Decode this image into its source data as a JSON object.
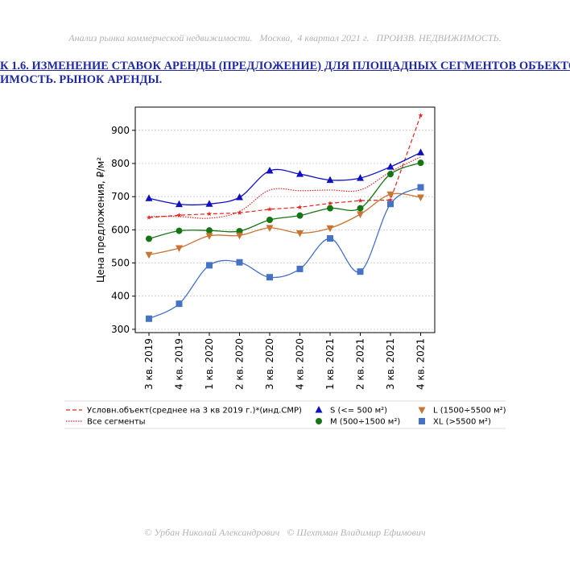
{
  "header": {
    "text": "Анализ рынка коммерческой недвижимости.   Москва,  4 квартал 2021 г.   ПРОИЗВ. НЕДВИЖИМОСТЬ."
  },
  "title": {
    "line1": "К 1.6. ИЗМЕНЕНИЕ СТАВОК АРЕНДЫ (ПРЕДЛОЖЕНИЕ) ДЛЯ ПЛОЩАДНЫХ СЕГМЕНТОВ ОБЪЕКТО",
    "line2": "ИМОСТЬ. РЫНОК АРЕНДЫ."
  },
  "footer": {
    "text": "© Урбан Николай Александрович   © Шехтман Владимир Ефимович"
  },
  "chart_data": {
    "type": "line",
    "categories": [
      "3 кв. 2019",
      "4 кв. 2019",
      "1 кв. 2020",
      "2 кв. 2020",
      "3 кв. 2020",
      "4 кв. 2020",
      "1 кв. 2021",
      "2 кв. 2021",
      "3 кв. 2021",
      "4 кв. 2021"
    ],
    "ylabel": "Цена предложения, ₽/м²",
    "ylim": [
      290,
      970
    ],
    "yticks": [
      300,
      400,
      500,
      600,
      700,
      800,
      900
    ],
    "grid": true,
    "legend_position": "bottom",
    "series": [
      {
        "name": "Условн.объект(среднее на 3 кв 2019 г.)*(инд.СМР)",
        "color": "#e8231e",
        "style": "dashed",
        "marker": "star",
        "values": [
          637,
          644,
          648,
          651,
          662,
          668,
          680,
          688,
          690,
          945
        ]
      },
      {
        "name": "Все сегменты",
        "color": "#e8231e",
        "style": "dotted",
        "marker": "none",
        "values": [
          640,
          640,
          635,
          655,
          720,
          718,
          720,
          720,
          775,
          820
        ]
      },
      {
        "name": "S (<= 500 м²)",
        "color": "#1010c0",
        "style": "solid",
        "marker": "triangle",
        "values": [
          695,
          677,
          678,
          698,
          778,
          768,
          750,
          756,
          790,
          833
        ]
      },
      {
        "name": "M (500÷1500 м²)",
        "color": "#157515",
        "style": "solid",
        "marker": "circle",
        "values": [
          573,
          597,
          598,
          596,
          630,
          643,
          665,
          665,
          768,
          802
        ]
      },
      {
        "name": "L (1500÷5500 м²)",
        "color": "#c87533",
        "style": "solid",
        "marker": "triangle-down",
        "values": [
          525,
          545,
          582,
          583,
          606,
          590,
          605,
          647,
          707,
          698
        ]
      },
      {
        "name": "XL (>5500 м²)",
        "color": "#4472c4",
        "style": "solid",
        "marker": "square",
        "values": [
          332,
          377,
          493,
          502,
          457,
          482,
          574,
          474,
          678,
          728
        ]
      }
    ]
  }
}
